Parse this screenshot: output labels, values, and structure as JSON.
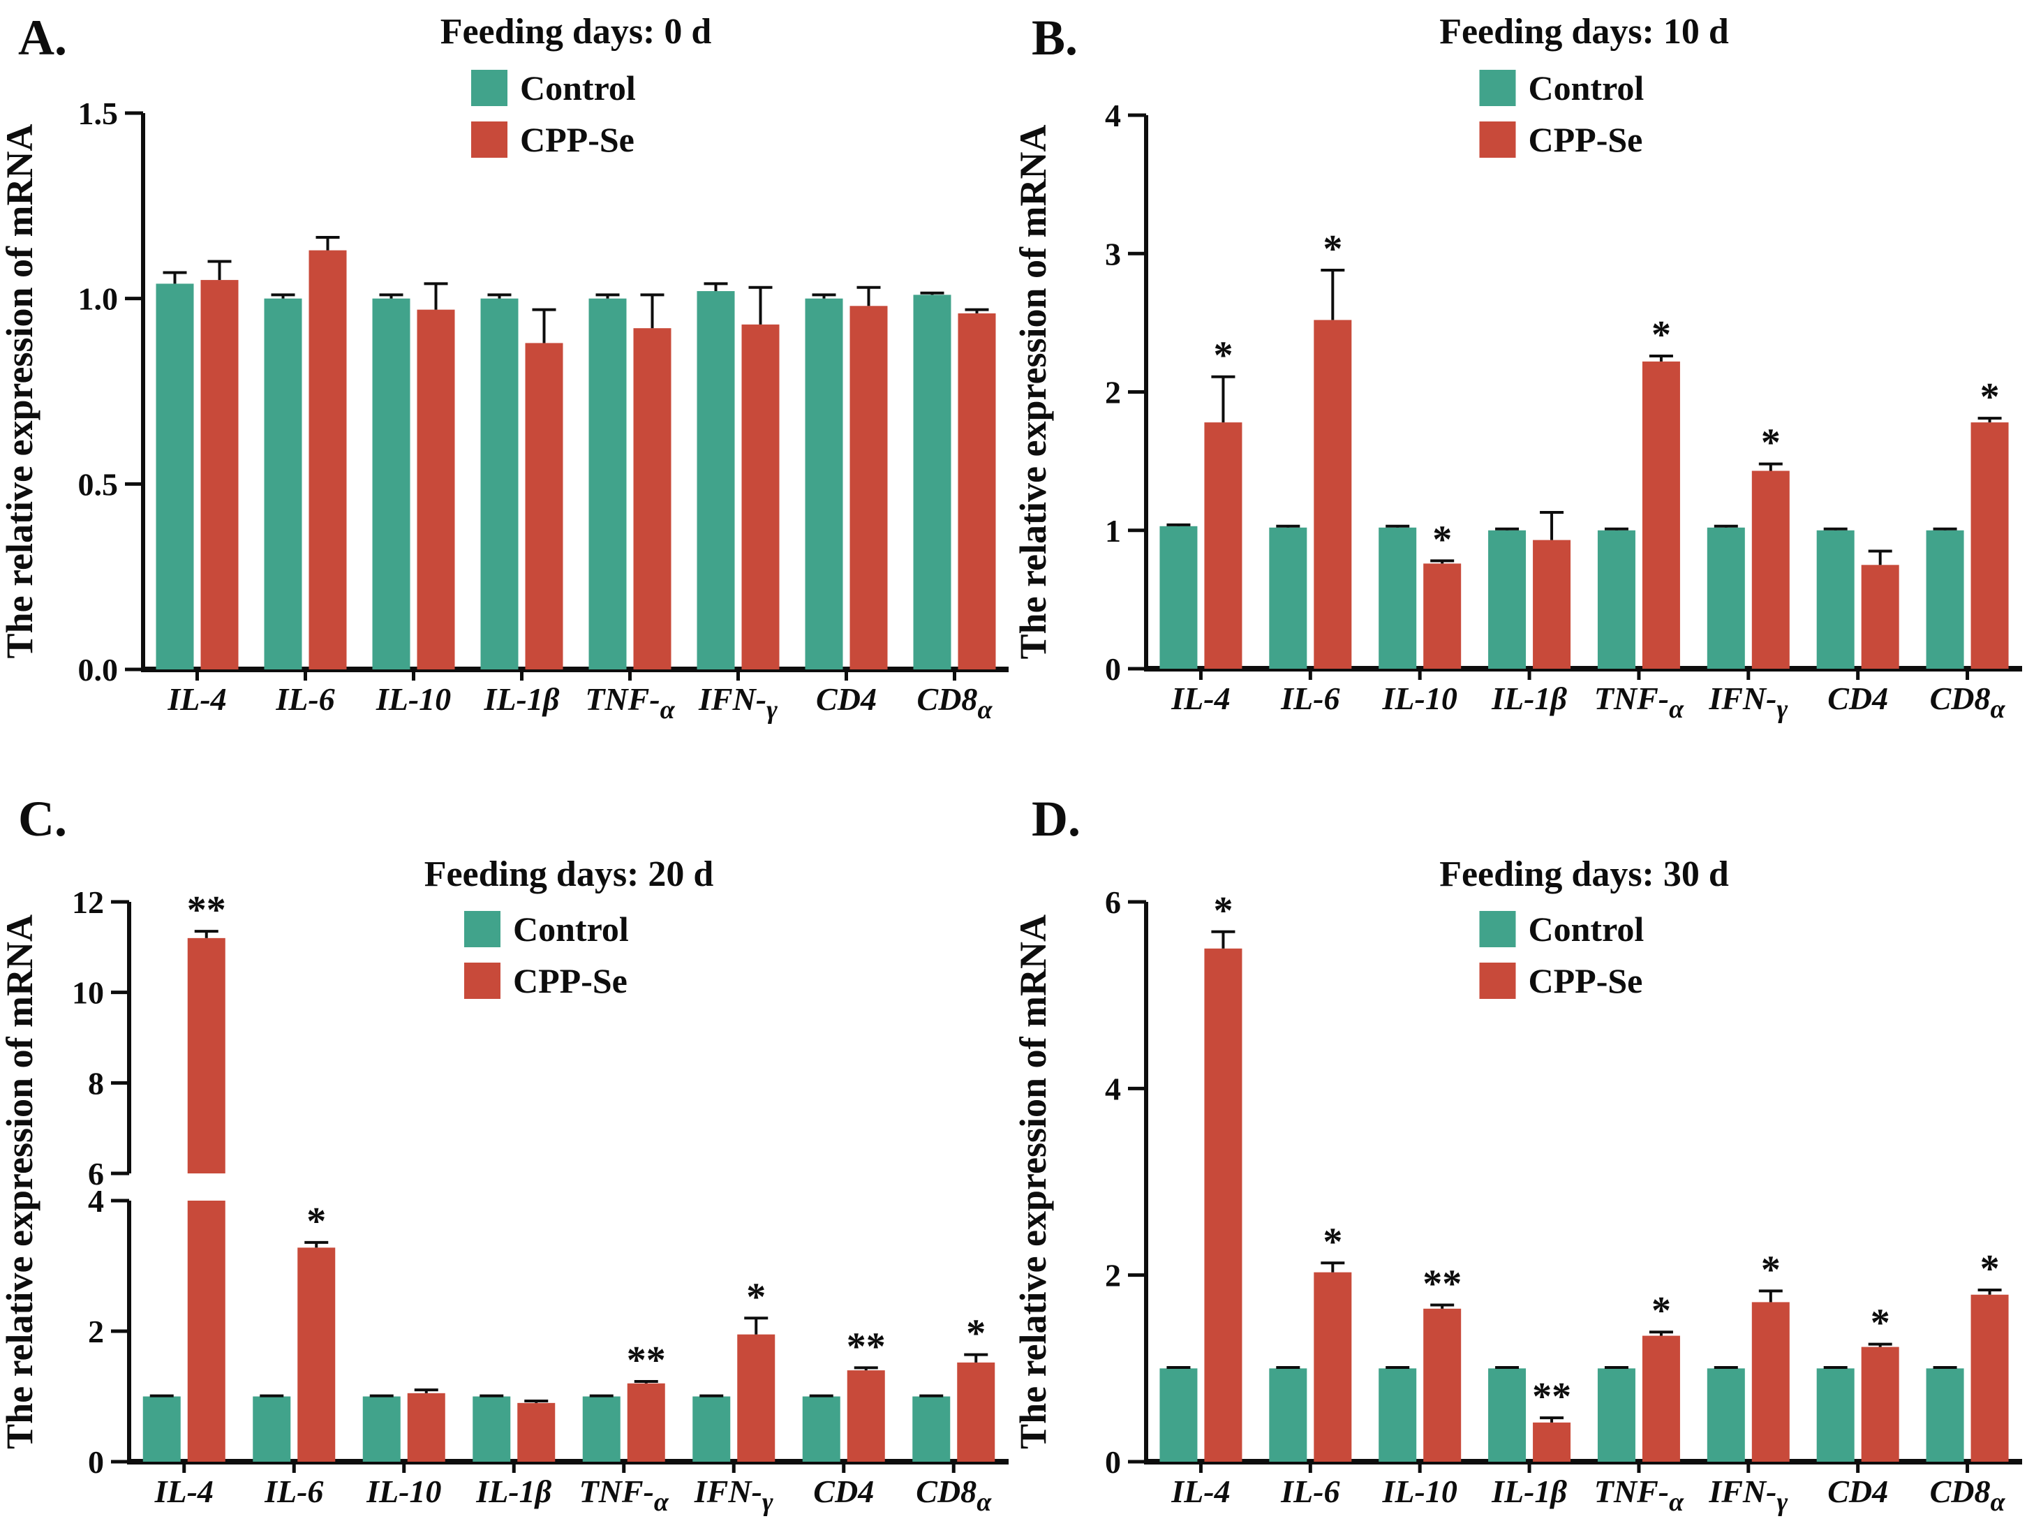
{
  "figure": {
    "background": "#ffffff",
    "colors": {
      "control": "#41A38B",
      "cppse": "#C84A3A",
      "axis": "#0d0d0d",
      "text": "#0d0d0d"
    },
    "ylabel": "The relative expression of mRNA",
    "legend": [
      {
        "label": "Control",
        "color_key": "control"
      },
      {
        "label": "CPP-Se",
        "color_key": "cppse"
      }
    ],
    "categories": [
      {
        "t": "IL-4"
      },
      {
        "t": "IL-6"
      },
      {
        "t": "IL-10"
      },
      {
        "t": "IL-1β"
      },
      {
        "t": "TNF-",
        "s": "α"
      },
      {
        "t": "IFN-",
        "s": "γ"
      },
      {
        "t": "CD4"
      },
      {
        "t": "CD8",
        "s": "α"
      }
    ]
  },
  "chart_data": [
    {
      "panel_letter": "A.",
      "title": "Feeding days: 0 d",
      "type": "bar",
      "ylim": [
        0,
        1.5
      ],
      "yticks": [
        0,
        0.5,
        1.0,
        1.5
      ],
      "ytick_labels": [
        "0.0",
        "0.5",
        "1.0",
        "1.5"
      ],
      "series": [
        {
          "name": "Control",
          "values": [
            1.04,
            1.0,
            1.0,
            1.0,
            1.0,
            1.02,
            1.0,
            1.01
          ],
          "errors": [
            0.03,
            0.01,
            0.01,
            0.01,
            0.01,
            0.02,
            0.01,
            0.005
          ]
        },
        {
          "name": "CPP-Se",
          "values": [
            1.05,
            1.13,
            0.97,
            0.88,
            0.92,
            0.93,
            0.98,
            0.96
          ],
          "errors": [
            0.05,
            0.035,
            0.07,
            0.09,
            0.09,
            0.1,
            0.05,
            0.01
          ]
        }
      ],
      "significance": [
        "",
        "",
        "",
        "",
        "",
        "",
        "",
        ""
      ]
    },
    {
      "panel_letter": "B.",
      "title": "Feeding days: 10 d",
      "type": "bar",
      "ylim": [
        0,
        4
      ],
      "yticks": [
        0,
        1,
        2,
        3,
        4
      ],
      "ytick_labels": [
        "0",
        "1",
        "2",
        "3",
        "4"
      ],
      "series": [
        {
          "name": "Control",
          "values": [
            1.03,
            1.02,
            1.02,
            1.0,
            1.0,
            1.02,
            1.0,
            1.0
          ],
          "errors": [
            0.01,
            0.01,
            0.01,
            0.01,
            0.01,
            0.01,
            0.01,
            0.01
          ]
        },
        {
          "name": "CPP-Se",
          "values": [
            1.78,
            2.52,
            0.76,
            0.93,
            2.22,
            1.43,
            0.75,
            1.78
          ],
          "errors": [
            0.33,
            0.36,
            0.02,
            0.2,
            0.04,
            0.05,
            0.1,
            0.03
          ]
        }
      ],
      "significance": [
        "*",
        "*",
        "*",
        "",
        "*",
        "*",
        "",
        "*"
      ]
    },
    {
      "panel_letter": "C.",
      "title": "Feeding days: 20 d",
      "type": "bar",
      "ylim": [
        0,
        12
      ],
      "axis_break": {
        "lower": [
          0,
          4
        ],
        "upper": [
          6,
          12
        ],
        "lower_ticks": [
          0,
          2,
          4
        ],
        "lower_tick_labels": [
          "0",
          "2",
          "4"
        ],
        "upper_ticks": [
          6,
          8,
          10,
          12
        ],
        "upper_tick_labels": [
          "6",
          "8",
          "10",
          "12"
        ]
      },
      "series": [
        {
          "name": "Control",
          "values": [
            1.0,
            1.0,
            1.0,
            1.0,
            1.0,
            1.0,
            1.0,
            1.0
          ],
          "errors": [
            0.01,
            0.01,
            0.01,
            0.01,
            0.01,
            0.01,
            0.01,
            0.01
          ]
        },
        {
          "name": "CPP-Se",
          "values": [
            11.2,
            3.28,
            1.05,
            0.9,
            1.2,
            1.95,
            1.4,
            1.52
          ],
          "errors": [
            0.15,
            0.08,
            0.05,
            0.03,
            0.03,
            0.25,
            0.04,
            0.12
          ]
        }
      ],
      "significance": [
        "**",
        "*",
        "",
        "",
        "**",
        "*",
        "**",
        "*"
      ]
    },
    {
      "panel_letter": "D.",
      "title": "Feeding days: 30 d",
      "type": "bar",
      "ylim": [
        0,
        6
      ],
      "yticks": [
        0,
        2,
        4,
        6
      ],
      "ytick_labels": [
        "0",
        "2",
        "4",
        "6"
      ],
      "series": [
        {
          "name": "Control",
          "values": [
            1.0,
            1.0,
            1.0,
            1.0,
            1.0,
            1.0,
            1.0,
            1.0
          ],
          "errors": [
            0.01,
            0.01,
            0.01,
            0.01,
            0.01,
            0.01,
            0.01,
            0.01
          ]
        },
        {
          "name": "CPP-Se",
          "values": [
            5.5,
            2.03,
            1.64,
            0.42,
            1.35,
            1.71,
            1.23,
            1.79
          ],
          "errors": [
            0.18,
            0.1,
            0.04,
            0.05,
            0.04,
            0.12,
            0.03,
            0.05
          ]
        }
      ],
      "significance": [
        "*",
        "*",
        "**",
        "**",
        "*",
        "*",
        "*",
        "*"
      ]
    }
  ]
}
